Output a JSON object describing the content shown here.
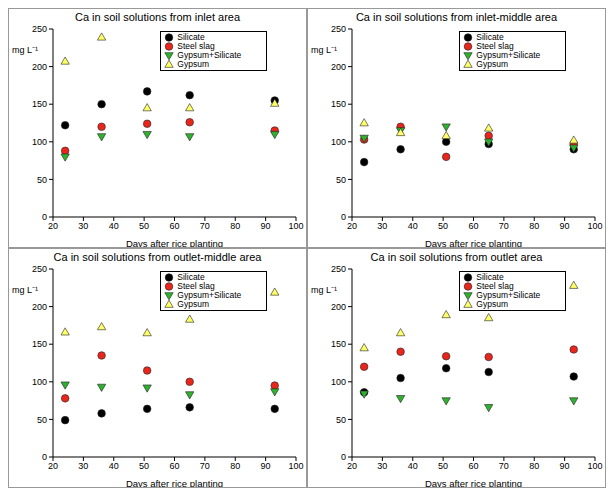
{
  "chart_data": [
    {
      "type": "scatter",
      "title": "Ca in soil solutions from inlet area",
      "x_label": "Days after rice planting",
      "y_label": "mg L⁻¹",
      "x": [
        24,
        36,
        51,
        65,
        93
      ],
      "xlim": [
        20,
        100
      ],
      "xticks": [
        20,
        30,
        40,
        50,
        60,
        70,
        80,
        90,
        100
      ],
      "ylim": [
        0,
        250
      ],
      "yticks": [
        0,
        50,
        100,
        150,
        200,
        250
      ],
      "grid": false,
      "legend": "upper right",
      "series": [
        {
          "name": "Silicate",
          "color": "#000000",
          "marker": "circle",
          "values": [
            122,
            150,
            167,
            162,
            155
          ]
        },
        {
          "name": "Steel slag",
          "color": "#e8261c",
          "marker": "circle",
          "values": [
            88,
            120,
            124,
            126,
            115
          ]
        },
        {
          "name": "Gypsum+Silicate",
          "color": "#2fb12f",
          "marker": "triangle-down",
          "values": [
            80,
            107,
            110,
            107,
            110
          ]
        },
        {
          "name": "Gypsum",
          "color": "#ffff66",
          "marker": "triangle",
          "values": [
            207,
            239,
            145,
            145,
            151
          ]
        }
      ]
    },
    {
      "type": "scatter",
      "title": "Ca in soil solutions from inlet-middle area",
      "x_label": "Days after rice planting",
      "y_label": "mg L⁻¹",
      "x": [
        24,
        36,
        51,
        65,
        93
      ],
      "xlim": [
        20,
        100
      ],
      "xticks": [
        20,
        30,
        40,
        50,
        60,
        70,
        80,
        90,
        100
      ],
      "ylim": [
        0,
        250
      ],
      "yticks": [
        0,
        50,
        100,
        150,
        200,
        250
      ],
      "grid": false,
      "legend": "upper right",
      "series": [
        {
          "name": "Silicate",
          "color": "#000000",
          "marker": "circle",
          "values": [
            73,
            90,
            100,
            97,
            90
          ]
        },
        {
          "name": "Steel slag",
          "color": "#e8261c",
          "marker": "circle",
          "values": [
            103,
            120,
            80,
            108,
            97
          ]
        },
        {
          "name": "Gypsum+Silicate",
          "color": "#2fb12f",
          "marker": "triangle-down",
          "values": [
            105,
            115,
            120,
            100,
            92
          ]
        },
        {
          "name": "Gypsum",
          "color": "#ffff66",
          "marker": "triangle",
          "values": [
            125,
            112,
            108,
            118,
            102
          ]
        }
      ]
    },
    {
      "type": "scatter",
      "title": "Ca in soil solutions from outlet-middle area",
      "x_label": "Days after rice planting",
      "y_label": "mg L⁻¹",
      "x": [
        24,
        36,
        51,
        65,
        93
      ],
      "xlim": [
        20,
        100
      ],
      "xticks": [
        20,
        30,
        40,
        50,
        60,
        70,
        80,
        90,
        100
      ],
      "ylim": [
        0,
        250
      ],
      "yticks": [
        0,
        50,
        100,
        150,
        200,
        250
      ],
      "grid": false,
      "legend": "upper right",
      "series": [
        {
          "name": "Silicate",
          "color": "#000000",
          "marker": "circle",
          "values": [
            49,
            58,
            64,
            66,
            64
          ]
        },
        {
          "name": "Steel slag",
          "color": "#e8261c",
          "marker": "circle",
          "values": [
            78,
            135,
            115,
            100,
            95
          ]
        },
        {
          "name": "Gypsum+Silicate",
          "color": "#2fb12f",
          "marker": "triangle-down",
          "values": [
            96,
            93,
            92,
            83,
            87
          ]
        },
        {
          "name": "Gypsum",
          "color": "#ffff66",
          "marker": "triangle",
          "values": [
            166,
            173,
            165,
            183,
            219
          ]
        }
      ]
    },
    {
      "type": "scatter",
      "title": "Ca in soil solutions from outlet area",
      "x_label": "Days after rice planting",
      "y_label": "mg L⁻¹",
      "x": [
        24,
        36,
        51,
        65,
        93
      ],
      "xlim": [
        20,
        100
      ],
      "xticks": [
        20,
        30,
        40,
        50,
        60,
        70,
        80,
        90,
        100
      ],
      "ylim": [
        0,
        250
      ],
      "yticks": [
        0,
        50,
        100,
        150,
        200,
        250
      ],
      "grid": false,
      "legend": "upper right",
      "series": [
        {
          "name": "Silicate",
          "color": "#000000",
          "marker": "circle",
          "values": [
            86,
            105,
            118,
            113,
            107
          ]
        },
        {
          "name": "Steel slag",
          "color": "#e8261c",
          "marker": "circle",
          "values": [
            120,
            140,
            134,
            133,
            143
          ]
        },
        {
          "name": "Gypsum+Silicate",
          "color": "#2fb12f",
          "marker": "triangle-down",
          "values": [
            84,
            78,
            75,
            66,
            75
          ]
        },
        {
          "name": "Gypsum",
          "color": "#ffff66",
          "marker": "triangle",
          "values": [
            145,
            165,
            189,
            185,
            228
          ]
        }
      ]
    }
  ]
}
